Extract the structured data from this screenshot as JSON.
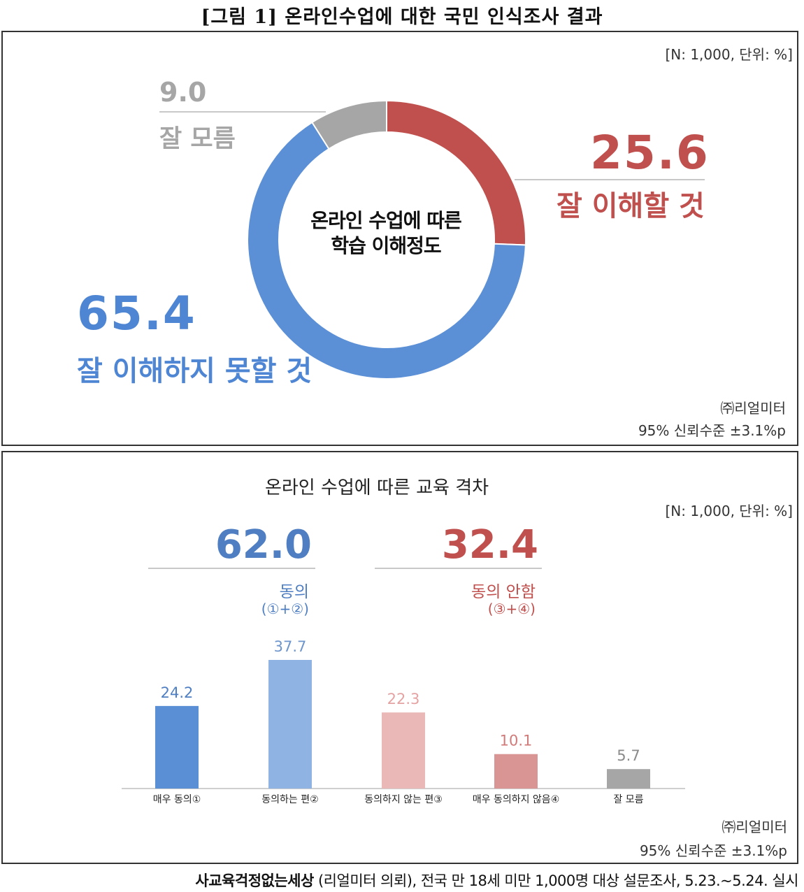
{
  "figure_title": "[그림 1] 온라인수업에 대한 국민 인식조사 결과",
  "panel1": {
    "meta": "[N: 1,000, 단위: %]",
    "center_line1": "온라인 수업에 따른",
    "center_line2": "학습 이해정도",
    "source": "㈜리얼미터",
    "confidence": "95% 신뢰수준 ±3.1%p",
    "colors": {
      "good": "#c0504d",
      "bad": "#5b8fd6",
      "unknown": "#a6a6a6"
    }
  },
  "panel2": {
    "title": "온라인 수업에 따른 교육 격차",
    "meta": "[N: 1,000, 단위: %]",
    "agree_total": "62.0",
    "agree_label": "동의",
    "agree_sub": "(①+②)",
    "disagree_total": "32.4",
    "disagree_label": "동의 안함",
    "disagree_sub": "(③+④)",
    "source": "㈜리얼미터",
    "confidence": "95% 신뢰수준 ±3.1%p"
  },
  "footer": {
    "org": "사교육걱정없는세상",
    "rest": " (리얼미터 의뢰), 전국 만 18세 미만 1,000명 대상 설문조사, 5.23.~5.24. 실시"
  },
  "chart_data": [
    {
      "type": "pie",
      "title": "온라인 수업에 따른 학습 이해정도",
      "categories": [
        "잘 이해할 것",
        "잘 이해하지 못할 것",
        "잘 모름"
      ],
      "values": [
        25.6,
        65.4,
        9.0
      ],
      "value_labels": [
        "25.6",
        "65.4",
        "9.0"
      ],
      "colors": [
        "#c0504d",
        "#5b8fd6",
        "#a6a6a6"
      ]
    },
    {
      "type": "bar",
      "title": "온라인 수업에 따른 교육 격차",
      "categories": [
        "매우 동의①",
        "동의하는 편②",
        "동의하지 않는 편③",
        "매우 동의하지 않음④",
        "잘 모름"
      ],
      "values": [
        24.2,
        37.7,
        22.3,
        10.1,
        5.7
      ],
      "value_labels": [
        "24.2",
        "37.7",
        "22.3",
        "10.1",
        "5.7"
      ],
      "colors": [
        "#5a8fd6",
        "#8fb4e3",
        "#eab8b7",
        "#d99594",
        "#a6a6a6"
      ],
      "label_colors": [
        "#4f7fc2",
        "#6f96cc",
        "#e4a3a2",
        "#d07b7a",
        "#8a8a8a"
      ],
      "ylim": [
        0,
        40
      ]
    }
  ]
}
